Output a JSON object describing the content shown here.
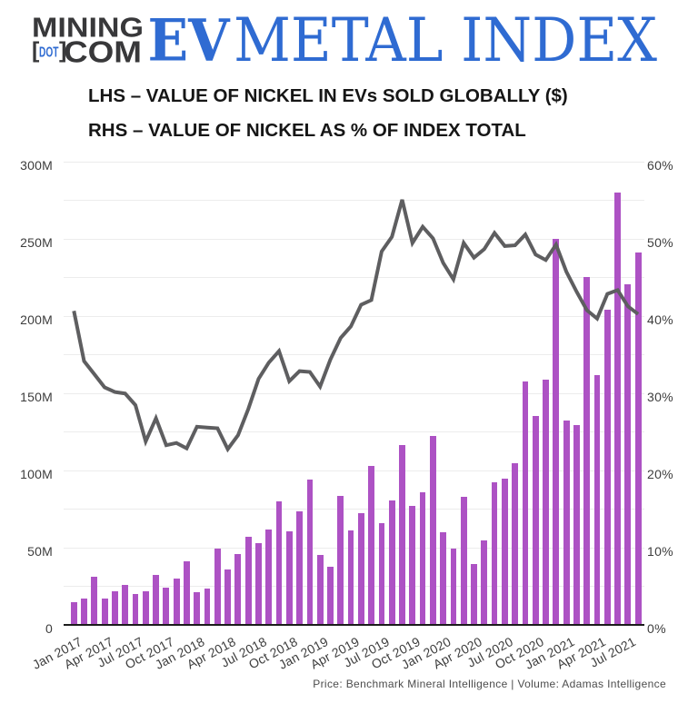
{
  "header": {
    "logo_mining": "MINING",
    "logo_bracket_open": "[",
    "logo_dot": "DOT",
    "logo_bracket_close": "]",
    "logo_com": "COM",
    "title_ev": "EV",
    "title_metal_index": "METAL INDEX"
  },
  "subtitles": {
    "lhs": "LHS – VALUE OF NICKEL IN EVs SOLD GLOBALLY ($)",
    "rhs": "RHS – VALUE OF NICKEL AS % OF INDEX TOTAL"
  },
  "footer": {
    "source": "Price: Benchmark Mineral Intelligence | Volume: Adamas Intelligence"
  },
  "colors": {
    "bar": "#ad52c4",
    "line": "#5e5e60",
    "blue": "#2f6bd2",
    "logo_dark": "#38383a",
    "grid": "#ececec",
    "axis": "#1c1c1c",
    "tick_label": "#3d3d3d"
  },
  "chart_data": {
    "type": "bar+line",
    "title": "EV METAL INDEX",
    "x": [
      "Jan 2017",
      "Feb 2017",
      "Mar 2017",
      "Apr 2017",
      "May 2017",
      "Jun 2017",
      "Jul 2017",
      "Aug 2017",
      "Sep 2017",
      "Oct 2017",
      "Nov 2017",
      "Dec 2017",
      "Jan 2018",
      "Feb 2018",
      "Mar 2018",
      "Apr 2018",
      "May 2018",
      "Jun 2018",
      "Jul 2018",
      "Aug 2018",
      "Sep 2018",
      "Oct 2018",
      "Nov 2018",
      "Dec 2018",
      "Jan 2019",
      "Feb 2019",
      "Mar 2019",
      "Apr 2019",
      "May 2019",
      "Jun 2019",
      "Jul 2019",
      "Aug 2019",
      "Sep 2019",
      "Oct 2019",
      "Nov 2019",
      "Dec 2019",
      "Jan 2020",
      "Feb 2020",
      "Mar 2020",
      "Apr 2020",
      "May 2020",
      "Jun 2020",
      "Jul 2020",
      "Aug 2020",
      "Sep 2020",
      "Oct 2020",
      "Nov 2020",
      "Dec 2020",
      "Jan 2021",
      "Feb 2021",
      "Mar 2021",
      "Apr 2021",
      "May 2021",
      "Jun 2021",
      "Jul 2021",
      "Aug 2021"
    ],
    "series": [
      {
        "name": "Value of nickel in EVs sold globally ($)",
        "type": "bar",
        "axis": "left",
        "unit": "million $",
        "values": [
          15.2,
          17.0,
          31.2,
          17.0,
          22.0,
          25.9,
          20.1,
          22.0,
          32.5,
          24.2,
          30.0,
          41.4,
          21.5,
          24.0,
          49.6,
          36.0,
          45.9,
          57.2,
          53.2,
          61.9,
          80.1,
          61.0,
          73.7,
          94.3,
          45.3,
          37.7,
          84.0,
          61.3,
          72.4,
          102.9,
          65.9,
          81.0,
          116.4,
          77.3,
          85.9,
          122.4,
          60.1,
          49.8,
          83.4,
          39.9,
          54.8,
          92.3,
          94.9,
          104.7,
          158.0,
          135.5,
          158.8,
          250.4,
          132.7,
          129.9,
          225.6,
          162.0,
          204.3,
          280.2,
          220.8,
          241.4
        ]
      },
      {
        "name": "Value of nickel as % of index total",
        "type": "line",
        "axis": "right",
        "unit": "%",
        "values": [
          40.7,
          34.2,
          32.5,
          30.8,
          30.2,
          30.0,
          28.5,
          23.8,
          26.8,
          23.3,
          23.6,
          22.9,
          25.7,
          25.6,
          25.5,
          22.8,
          24.6,
          28.0,
          31.9,
          34.0,
          35.5,
          31.6,
          32.9,
          32.8,
          30.9,
          34.4,
          37.2,
          38.7,
          41.5,
          42.1,
          48.4,
          50.3,
          55.1,
          49.5,
          51.6,
          50.1,
          46.9,
          44.8,
          49.5,
          47.6,
          48.7,
          50.8,
          49.1,
          49.2,
          50.6,
          48.0,
          47.3,
          49.3,
          45.8,
          43.2,
          40.8,
          39.7,
          42.9,
          43.4,
          41.3,
          40.3
        ]
      }
    ],
    "left_axis": {
      "tick_labels": [
        "0",
        "50M",
        "100M",
        "150M",
        "200M",
        "250M",
        "300M"
      ],
      "min": 0,
      "max": 300,
      "gridline_step_m": 25
    },
    "right_axis": {
      "tick_labels": [
        "0%",
        "10%",
        "20%",
        "30%",
        "40%",
        "50%",
        "60%"
      ],
      "min": 0,
      "max": 60
    },
    "x_tick_labels": [
      "Jan 2017",
      "Apr 2017",
      "Jul 2017",
      "Oct 2017",
      "Jan 2018",
      "Apr 2018",
      "Jul 2018",
      "Oct 2018",
      "Jan 2019",
      "Apr 2019",
      "Jul 2019",
      "Oct 2019",
      "Jan 2020",
      "Apr 2020",
      "Jul 2020",
      "Oct 2020",
      "Jan 2021",
      "Apr 2021",
      "Jul 2021"
    ],
    "grid": true,
    "legend_position": "none"
  }
}
